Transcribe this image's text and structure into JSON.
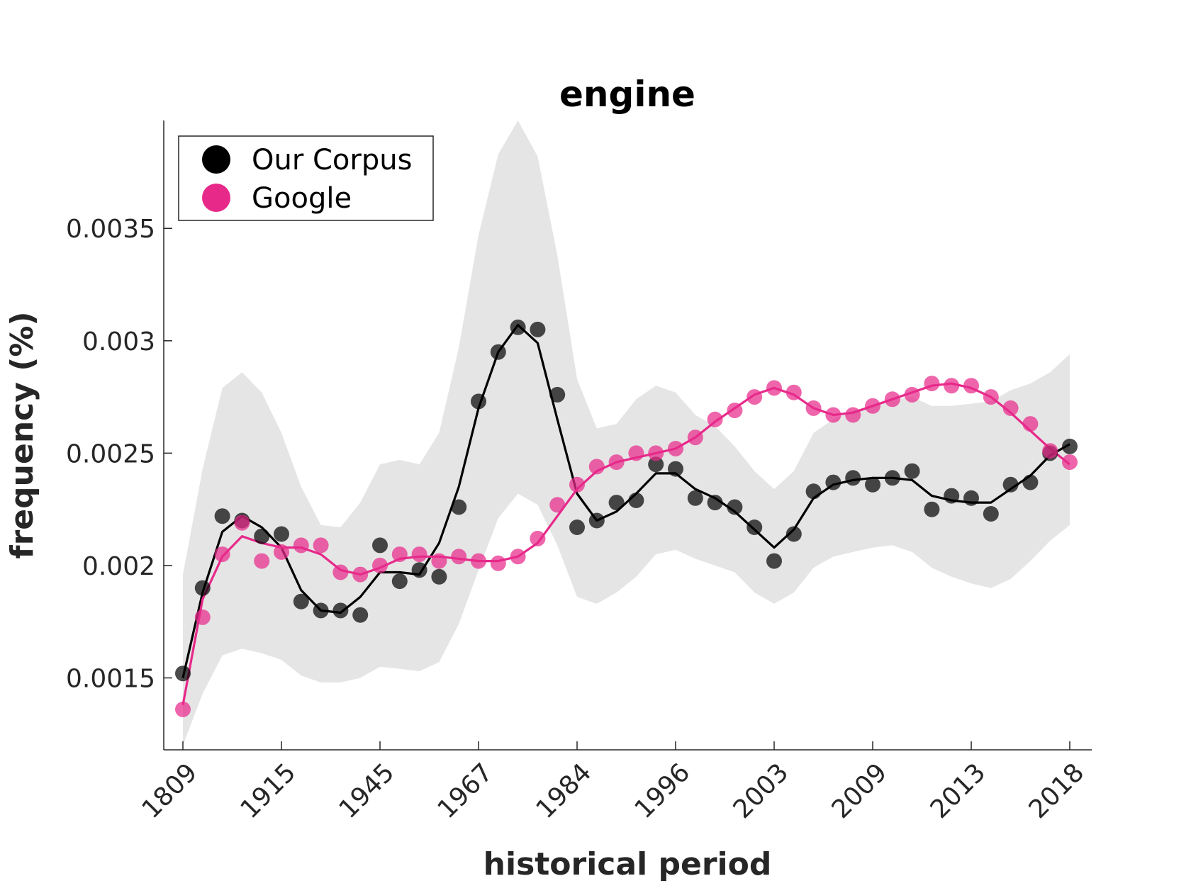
{
  "chart_data": {
    "type": "line",
    "title": "engine",
    "xlabel": "historical period",
    "ylabel": "frequency (%)",
    "ylim": [
      0.00118,
      0.00398
    ],
    "yticks": [
      0.0015,
      0.002,
      0.0025,
      0.003,
      0.0035
    ],
    "ytick_labels": [
      "0.0015",
      "0.002",
      "0.0025",
      "0.003",
      "0.0035"
    ],
    "xtick_labels": [
      "1809",
      "1915",
      "1945",
      "1967",
      "1984",
      "1996",
      "2003",
      "2009",
      "2013",
      "2018"
    ],
    "legend_position": "top-left",
    "grid": false,
    "band_color": "#e5e5e5",
    "series": [
      {
        "name": "Our Corpus",
        "color": "#000000",
        "points": [
          0.00152,
          0.0019,
          0.00222,
          0.0022,
          0.00213,
          0.00214,
          0.00184,
          0.0018,
          0.0018,
          0.00178,
          0.00209,
          0.00193,
          0.00198,
          0.00195,
          0.00226,
          0.00273,
          0.00295,
          0.00306,
          0.00305,
          0.00276,
          0.00217,
          0.0022,
          0.00228,
          0.00229,
          0.00245,
          0.00243,
          0.0023,
          0.00228,
          0.00226,
          0.00217,
          0.00202,
          0.00214,
          0.00233,
          0.00237,
          0.00239,
          0.00236,
          0.00239,
          0.00242,
          0.00225,
          0.00231,
          0.0023,
          0.00223,
          0.00236,
          0.00237,
          0.0025,
          0.00253
        ],
        "trend": [
          0.0015,
          0.00188,
          0.00215,
          0.00222,
          0.00217,
          0.00208,
          0.00189,
          0.0018,
          0.00179,
          0.00186,
          0.00197,
          0.00197,
          0.00196,
          0.0021,
          0.00235,
          0.0027,
          0.00295,
          0.00307,
          0.00299,
          0.00265,
          0.00232,
          0.0022,
          0.00224,
          0.00232,
          0.00241,
          0.00241,
          0.00234,
          0.0023,
          0.00224,
          0.00216,
          0.00208,
          0.00216,
          0.0023,
          0.00236,
          0.00238,
          0.00239,
          0.00239,
          0.00238,
          0.00231,
          0.00229,
          0.00228,
          0.00228,
          0.00234,
          0.0024,
          0.00249,
          0.00254
        ],
        "band_upper": [
          0.00196,
          0.00243,
          0.00279,
          0.00286,
          0.00277,
          0.00259,
          0.00235,
          0.00218,
          0.00217,
          0.00228,
          0.00245,
          0.00247,
          0.00245,
          0.00259,
          0.00297,
          0.00347,
          0.00383,
          0.00398,
          0.00382,
          0.00338,
          0.00283,
          0.00261,
          0.00263,
          0.00274,
          0.0028,
          0.00277,
          0.00267,
          0.00262,
          0.00253,
          0.00242,
          0.00234,
          0.00242,
          0.00259,
          0.00265,
          0.00269,
          0.00271,
          0.00274,
          0.00275,
          0.00271,
          0.00271,
          0.00272,
          0.00273,
          0.00278,
          0.00281,
          0.00286,
          0.00294
        ],
        "band_lower": [
          0.0012,
          0.00143,
          0.0016,
          0.00163,
          0.00161,
          0.00158,
          0.00151,
          0.00148,
          0.00148,
          0.0015,
          0.00155,
          0.00154,
          0.00153,
          0.00157,
          0.00174,
          0.00198,
          0.00221,
          0.00232,
          0.00227,
          0.00209,
          0.00186,
          0.00183,
          0.00188,
          0.00195,
          0.00205,
          0.00207,
          0.00203,
          0.002,
          0.00197,
          0.00188,
          0.00183,
          0.00188,
          0.00199,
          0.00204,
          0.00206,
          0.00208,
          0.00209,
          0.00206,
          0.00199,
          0.00195,
          0.00192,
          0.0019,
          0.00194,
          0.00202,
          0.00211,
          0.00218
        ]
      },
      {
        "name": "Google",
        "color": "#e7298a",
        "points": [
          0.00136,
          0.00177,
          0.00205,
          0.00219,
          0.00202,
          0.00206,
          0.00209,
          0.00209,
          0.00197,
          0.00196,
          0.002,
          0.00205,
          0.00205,
          0.00202,
          0.00204,
          0.00202,
          0.00201,
          0.00204,
          0.00212,
          0.00227,
          0.00236,
          0.00244,
          0.00246,
          0.0025,
          0.0025,
          0.00252,
          0.00257,
          0.00265,
          0.00269,
          0.00275,
          0.00279,
          0.00277,
          0.0027,
          0.00267,
          0.00267,
          0.00271,
          0.00274,
          0.00276,
          0.00281,
          0.0028,
          0.0028,
          0.00275,
          0.0027,
          0.00263,
          0.00251,
          0.00246
        ],
        "trend": [
          0.00138,
          0.00185,
          0.00204,
          0.00213,
          0.0021,
          0.00208,
          0.00208,
          0.00205,
          0.00198,
          0.00196,
          0.00199,
          0.00203,
          0.00204,
          0.00204,
          0.00203,
          0.00202,
          0.00202,
          0.00204,
          0.0021,
          0.00222,
          0.00234,
          0.00242,
          0.00246,
          0.00248,
          0.0025,
          0.00252,
          0.00257,
          0.00264,
          0.0027,
          0.00276,
          0.00279,
          0.00276,
          0.0027,
          0.00267,
          0.00268,
          0.00271,
          0.00274,
          0.00277,
          0.0028,
          0.00281,
          0.00279,
          0.00275,
          0.00268,
          0.0026,
          0.00252,
          0.00245
        ]
      }
    ]
  }
}
